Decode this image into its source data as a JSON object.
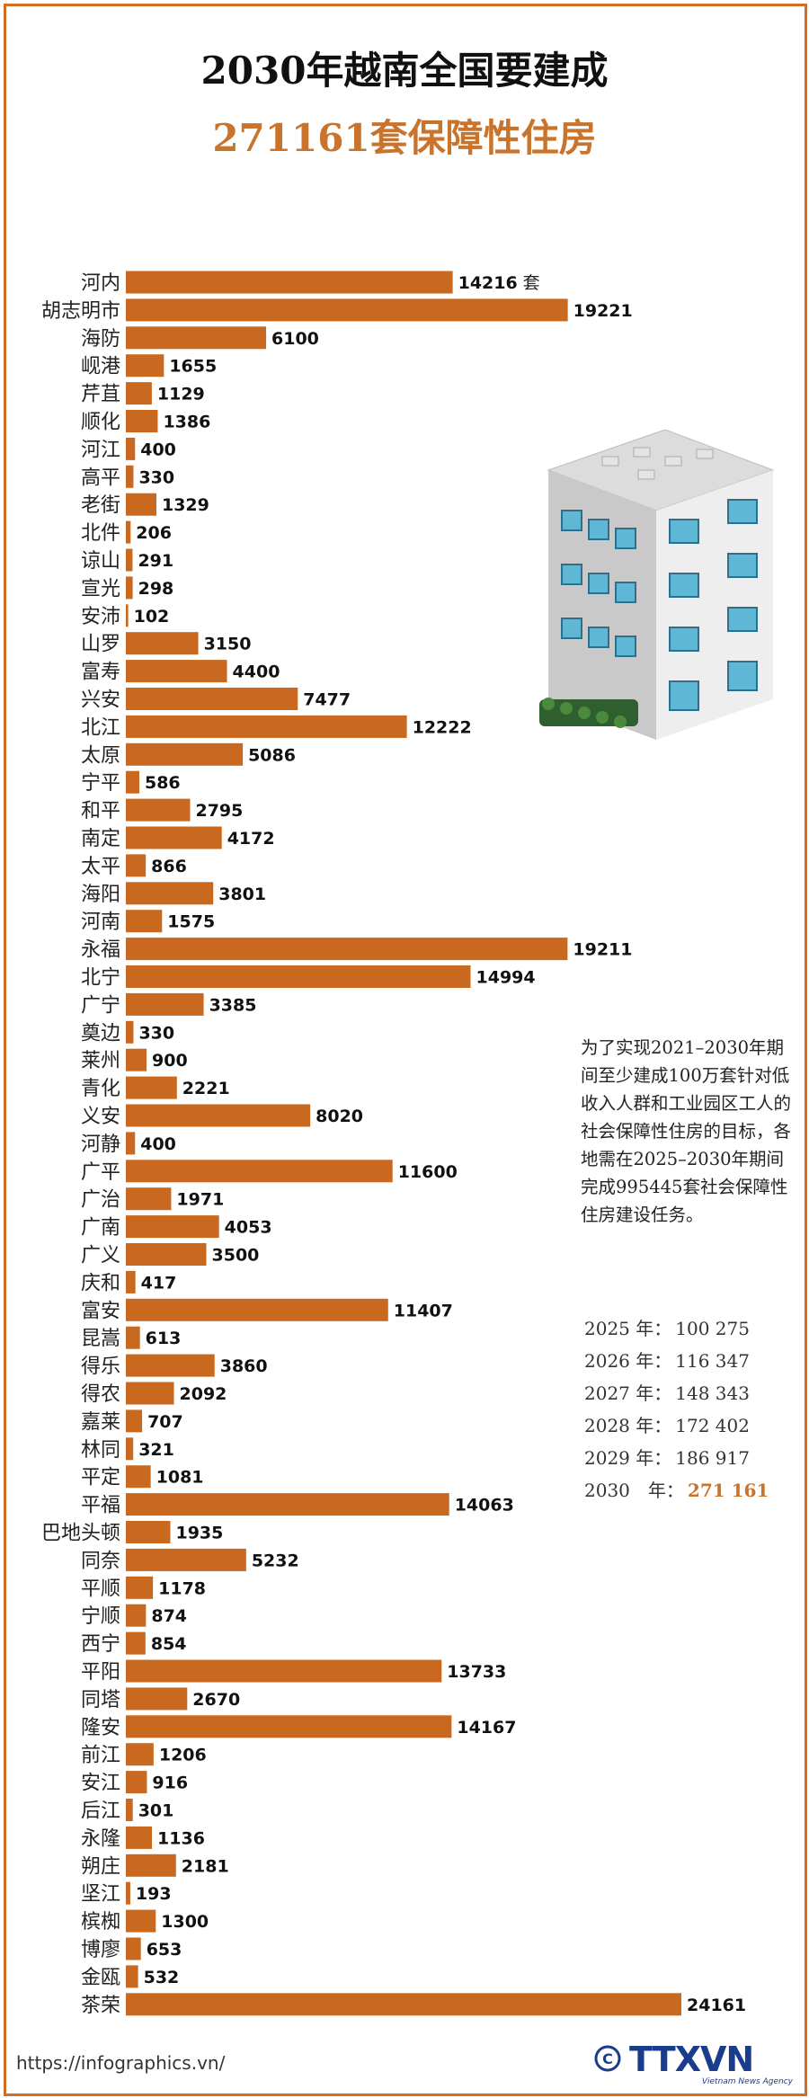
{
  "title_line1": "2030年越南全国要建成",
  "title_line2": "271161套保障性住房",
  "unit": "套",
  "note": "为了实现2021–2030年期间至少建成100万套针对低收入人群和工业园区工人的社会保障性住房的目标，各地需在2025–2030年期间完成995445套社会保障性住房建设任务。",
  "yearly": [
    {
      "year": "2025 年：",
      "value": "100 275"
    },
    {
      "year": "2026 年：",
      "value": "116 347"
    },
    {
      "year": "2027 年：",
      "value": "148 343"
    },
    {
      "year": "2028 年：",
      "value": "172 402"
    },
    {
      "year": "2029 年：",
      "value": "186 917"
    },
    {
      "year": "2030　年：",
      "value": "271 161"
    }
  ],
  "source": "https://infographics.vn/",
  "logo": {
    "text": "TTXVN",
    "sub": "Vietnam News Agency",
    "icon": "copyright-icon"
  },
  "colors": {
    "bar": "#c9691f",
    "accent": "#c9742c",
    "frame": "#d46f22"
  },
  "chart_data": {
    "type": "bar",
    "orientation": "horizontal",
    "categories": [
      "河内",
      "胡志明市",
      "海防",
      "岘港",
      "芹苴",
      "顺化",
      "河江",
      "高平",
      "老街",
      "北件",
      "谅山",
      "宣光",
      "安沛",
      "山罗",
      "富寿",
      "兴安",
      "北江",
      "太原",
      "宁平",
      "和平",
      "南定",
      "太平",
      "海阳",
      "河南",
      "永福",
      "北宁",
      "广宁",
      "奠边",
      "莱州",
      "青化",
      "义安",
      "河静",
      "广平",
      "广治",
      "广南",
      "广义",
      "庆和",
      "富安",
      "昆嵩",
      "得乐",
      "得农",
      "嘉莱",
      "林同",
      "平定",
      "平福",
      "巴地头顿",
      "同奈",
      "平顺",
      "宁顺",
      "西宁",
      "平阳",
      "同塔",
      "隆安",
      "前江",
      "安江",
      "后江",
      "永隆",
      "朔庄",
      "坚江",
      "槟椥",
      "博廖",
      "金瓯",
      "茶荣"
    ],
    "values": [
      14216,
      19221,
      6100,
      1655,
      1129,
      1386,
      400,
      330,
      1329,
      206,
      291,
      298,
      102,
      3150,
      4400,
      7477,
      12222,
      5086,
      586,
      2795,
      4172,
      866,
      3801,
      1575,
      19211,
      14994,
      3385,
      330,
      900,
      2221,
      8020,
      400,
      11600,
      1971,
      4053,
      3500,
      417,
      11407,
      613,
      3860,
      2092,
      707,
      321,
      1081,
      14063,
      1935,
      5232,
      1178,
      874,
      854,
      13733,
      2670,
      14167,
      1206,
      916,
      301,
      1136,
      2181,
      193,
      1300,
      653,
      532,
      24161
    ],
    "xlim": [
      0,
      24161
    ]
  }
}
